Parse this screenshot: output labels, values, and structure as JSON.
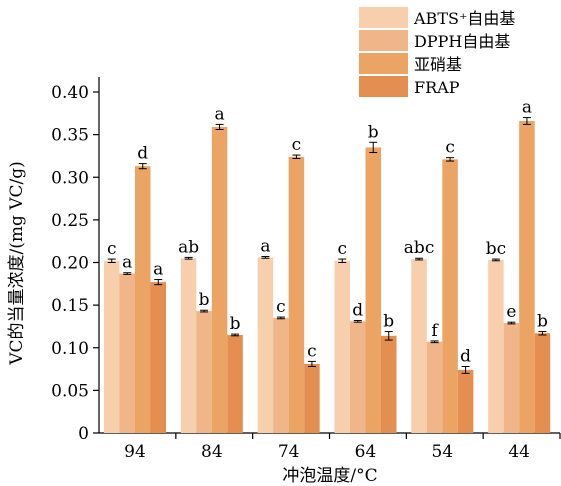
{
  "chart_data": {
    "type": "bar",
    "xlabel": "冲泡温度/°C",
    "ylabel": "VC的当量浓度/(mg VC/g)",
    "categories": [
      "94",
      "84",
      "74",
      "64",
      "54",
      "44"
    ],
    "ylim": [
      0,
      0.4
    ],
    "yticks": [
      "0",
      "0.05",
      "0.10",
      "0.15",
      "0.20",
      "0.25",
      "0.30",
      "0.35",
      "0.40"
    ],
    "grid": false,
    "legend_position": "top-right",
    "series": [
      {
        "name": "ABTS⁺自由基",
        "color": "#f7cfac",
        "values": [
          0.202,
          0.205,
          0.206,
          0.202,
          0.204,
          0.203
        ],
        "errors": [
          0.002,
          0.001,
          0.001,
          0.002,
          0.001,
          0.001
        ],
        "labels": [
          "c",
          "ab",
          "a",
          "c",
          "abc",
          "bc"
        ]
      },
      {
        "name": "DPPH自由基",
        "color": "#f0b588",
        "values": [
          0.187,
          0.143,
          0.135,
          0.131,
          0.107,
          0.129
        ],
        "errors": [
          0.001,
          0.001,
          0.001,
          0.001,
          0.001,
          0.001
        ],
        "labels": [
          "a",
          "b",
          "c",
          "d",
          "f",
          "e"
        ]
      },
      {
        "name": "亚硝基",
        "color": "#eba463",
        "values": [
          0.313,
          0.359,
          0.324,
          0.335,
          0.321,
          0.366
        ],
        "errors": [
          0.003,
          0.003,
          0.002,
          0.006,
          0.002,
          0.004
        ],
        "labels": [
          "d",
          "a",
          "c",
          "b",
          "c",
          "a"
        ]
      },
      {
        "name": "FRAP",
        "color": "#e58e52",
        "values": [
          0.177,
          0.115,
          0.081,
          0.114,
          0.074,
          0.117
        ],
        "errors": [
          0.003,
          0.001,
          0.003,
          0.005,
          0.004,
          0.002
        ],
        "labels": [
          "a",
          "b",
          "c",
          "b",
          "d",
          "b"
        ]
      }
    ]
  }
}
